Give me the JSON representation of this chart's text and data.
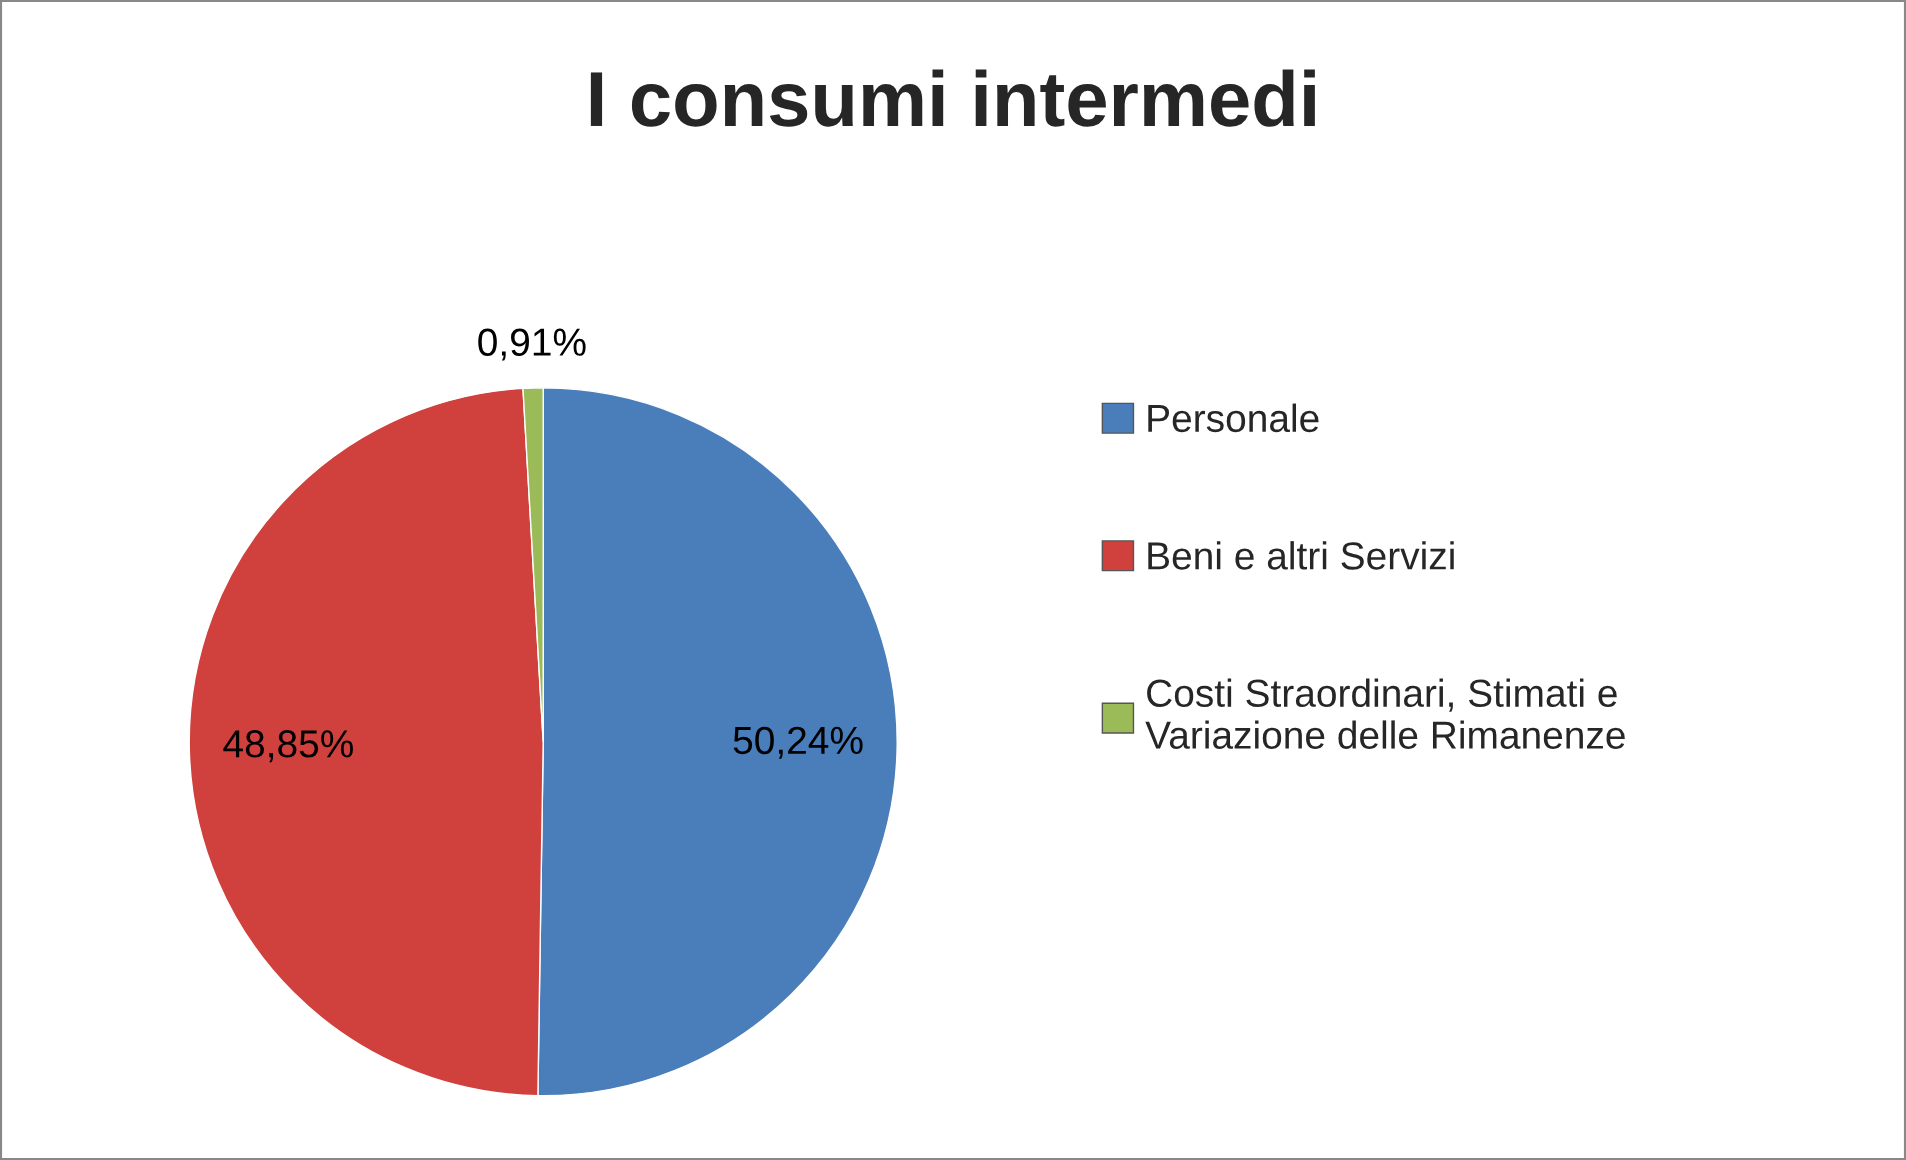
{
  "chart_data": {
    "type": "pie",
    "title": "I consumi intermedi",
    "categories": [
      "Personale",
      "Beni e altri Servizi",
      "Costi Straordinari, Stimati e\nVariazione delle Rimanenze"
    ],
    "values": [
      50.24,
      48.85,
      0.91
    ],
    "colors": [
      "#4a7ebb",
      "#d0403c",
      "#9bbb59"
    ],
    "value_labels": [
      "50,24%",
      "48,85%",
      "0,91%"
    ],
    "legend": "right"
  }
}
